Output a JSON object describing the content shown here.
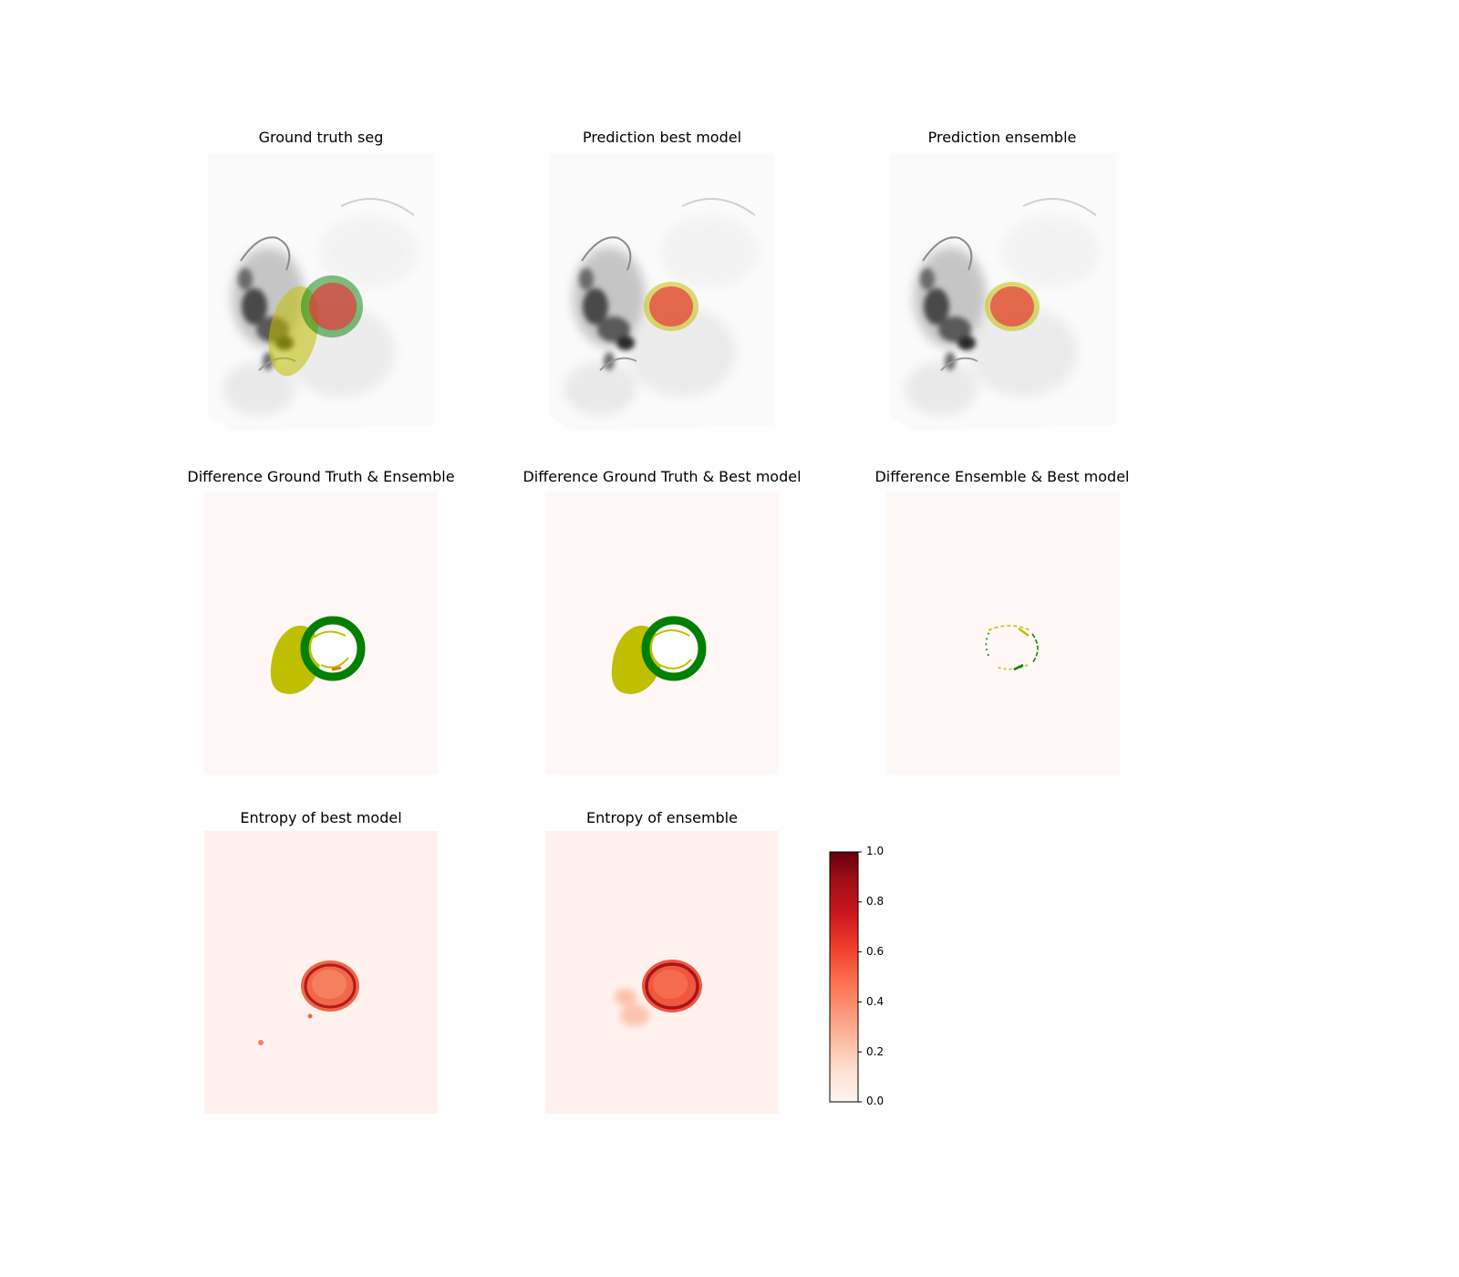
{
  "panels": {
    "gt_seg": {
      "title": "Ground truth seg"
    },
    "pred_best": {
      "title": "Prediction best model"
    },
    "pred_ensemble": {
      "title": "Prediction ensemble"
    },
    "diff_gt_ensemble": {
      "title": "Difference Ground Truth & Ensemble"
    },
    "diff_gt_best": {
      "title": "Difference Ground Truth & Best model"
    },
    "diff_ensemble_best": {
      "title": "Difference Ensemble & Best model"
    },
    "entropy_best": {
      "title": "Entropy of best model"
    },
    "entropy_ensemble": {
      "title": "Entropy of ensemble"
    }
  },
  "colorbar": {
    "colormap": "Reds",
    "ticks": [
      "1.0",
      "0.8",
      "0.6",
      "0.4",
      "0.2",
      "0.0"
    ]
  },
  "colors": {
    "class_green": "#008000",
    "class_olive": "#bfbf00",
    "class_red": "#e8383d",
    "diff_background": "#fff8f7",
    "entropy_background": "#fff2ee"
  }
}
